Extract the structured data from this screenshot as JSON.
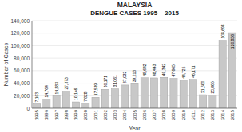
{
  "chart_data": {
    "type": "bar",
    "title": "MALAYSIA",
    "subtitle": "DENGUE CASES 1995 – 2015",
    "xlabel": "Year",
    "ylabel": "Number of Cases",
    "categories": [
      "1995",
      "1996",
      "1997",
      "1998",
      "1999",
      "2000",
      "2001",
      "2002",
      "2003",
      "2004",
      "2005",
      "2006",
      "2007",
      "2008",
      "2009",
      "2010",
      "2011",
      "2012",
      "2013",
      "2014",
      "2015"
    ],
    "values": [
      7103,
      14764,
      19883,
      27373,
      10146,
      7828,
      17539,
      30171,
      31061,
      37032,
      39213,
      48642,
      48443,
      49342,
      47665,
      44725,
      46171,
      21600,
      20865,
      108698,
      120836
    ],
    "value_labels": [
      "7,103",
      "14,764",
      "19,883",
      "27,373",
      "10,146",
      "7,828",
      "17,539",
      "30,171",
      "31,061",
      "37,032",
      "39,213",
      "48,642",
      "48,443",
      "49,342",
      "47,665",
      "44,725",
      "46,171",
      "21,600",
      "20,865",
      "108,698",
      "120,836"
    ],
    "data_labels": true,
    "color": "#c8c8c8",
    "ylim": [
      0,
      140000
    ],
    "yticks": [
      0,
      {
        "value": 20000,
        "label": "20,000"
      },
      {
        "value": 40000,
        "label": "40,000"
      },
      {
        "value": 60000,
        "label": "60,000"
      },
      {
        "value": 80000,
        "label": "80,000"
      },
      {
        "value": 100000,
        "label": "100,000"
      },
      {
        "value": 120000,
        "label": "120,000"
      },
      {
        "value": 140000,
        "label": "140,000"
      }
    ],
    "grid": true
  }
}
